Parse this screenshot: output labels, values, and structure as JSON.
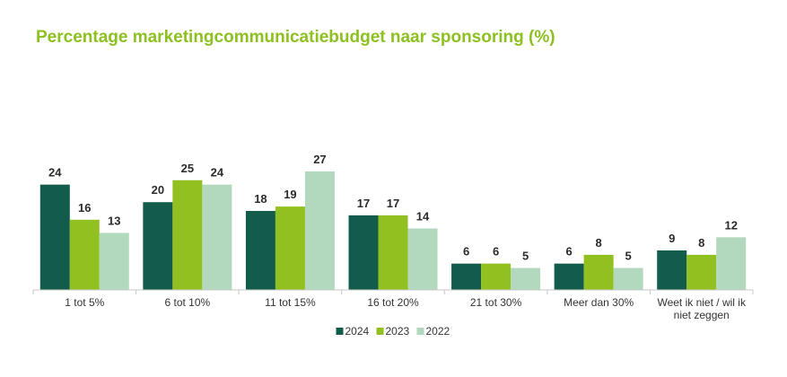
{
  "chart_data": {
    "type": "bar",
    "title": "Percentage marketingcommunicatiebudget naar sponsoring (%)",
    "categories": [
      [
        "1 tot 5%"
      ],
      [
        "6 tot 10%"
      ],
      [
        "11 tot 15%"
      ],
      [
        "16 tot 20%"
      ],
      [
        "21 tot 30%"
      ],
      [
        "Meer dan 30%"
      ],
      [
        "Weet ik niet / wil ik",
        "niet zeggen"
      ]
    ],
    "series": [
      {
        "name": "2024",
        "color": "#135c4c",
        "values": [
          24,
          20,
          18,
          17,
          6,
          6,
          9
        ]
      },
      {
        "name": "2023",
        "color": "#92c020",
        "values": [
          16,
          25,
          19,
          17,
          6,
          8,
          8
        ]
      },
      {
        "name": "2022",
        "color": "#b2d9bd",
        "values": [
          13,
          24,
          27,
          14,
          5,
          5,
          12
        ]
      }
    ],
    "ylim": [
      0,
      27
    ],
    "grid": false,
    "legend_position": "bottom-center",
    "title_color": "#8dc021"
  }
}
